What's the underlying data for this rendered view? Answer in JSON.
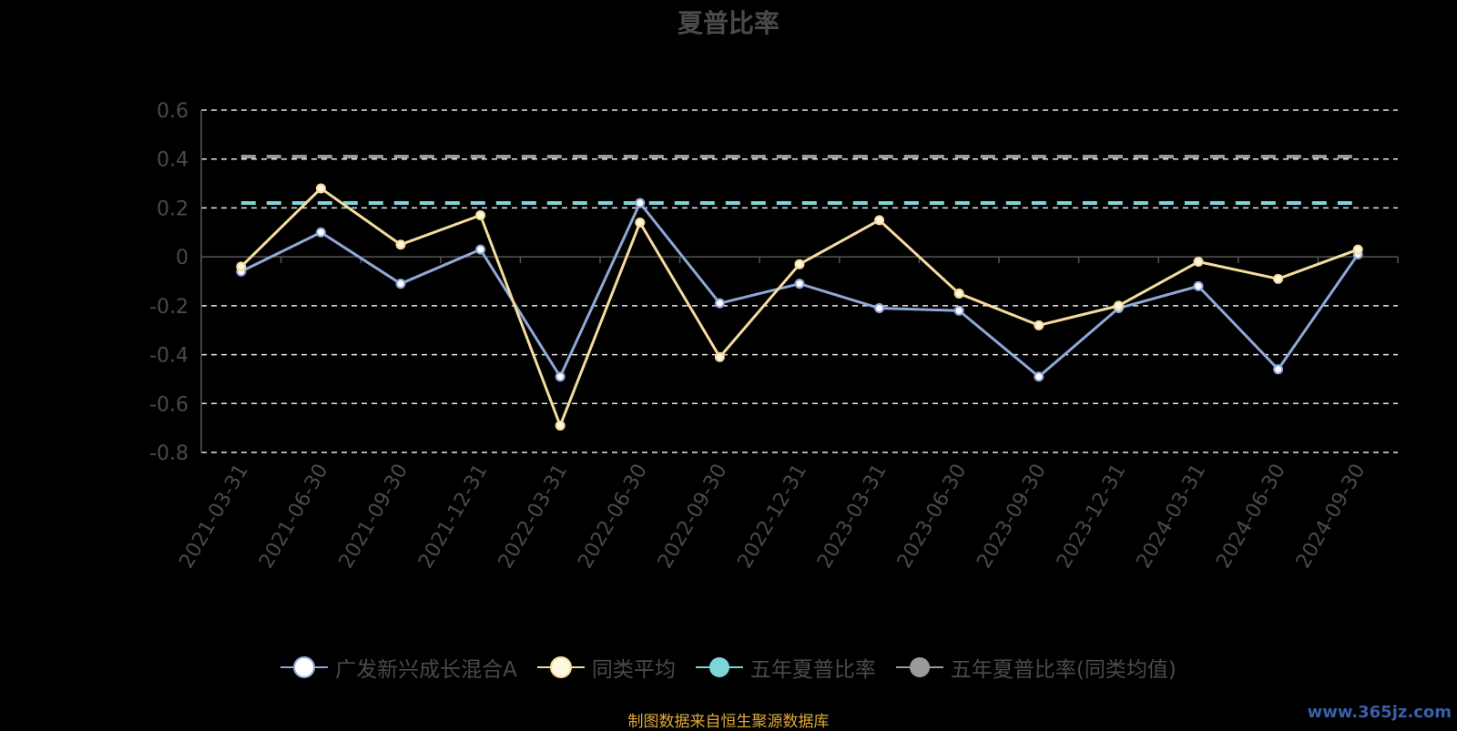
{
  "chart_data": {
    "type": "line",
    "title": "夏普比率",
    "categories": [
      "2021-03-31",
      "2021-06-30",
      "2021-09-30",
      "2021-12-31",
      "2022-03-31",
      "2022-06-30",
      "2022-09-30",
      "2022-12-31",
      "2023-03-31",
      "2023-06-30",
      "2023-09-30",
      "2023-12-31",
      "2024-03-31",
      "2024-06-30",
      "2024-09-30"
    ],
    "ylim": [
      -0.8,
      0.6
    ],
    "yticks": [
      "0.6",
      "0.4",
      "0.2",
      "0",
      "-0.2",
      "-0.4",
      "-0.6",
      "-0.8"
    ],
    "grid": true,
    "legend_position": "bottom",
    "series": [
      {
        "name": "广发新兴成长混合A",
        "color": "#8fa8d8",
        "marker_fill": "#ffffff",
        "style": "solid",
        "values": [
          -0.06,
          0.1,
          -0.11,
          0.03,
          -0.49,
          0.22,
          -0.19,
          -0.11,
          -0.21,
          -0.22,
          -0.49,
          -0.21,
          -0.12,
          -0.46,
          0.01
        ]
      },
      {
        "name": "同类平均",
        "color": "#f5dc9e",
        "marker_fill": "#fff8e0",
        "style": "solid",
        "values": [
          -0.04,
          0.28,
          0.05,
          0.17,
          -0.69,
          0.14,
          -0.41,
          -0.03,
          0.15,
          -0.15,
          -0.28,
          -0.2,
          -0.02,
          -0.09,
          0.03
        ]
      },
      {
        "name": "五年夏普比率",
        "color": "#7fd4d8",
        "marker_fill": "#7fd4d8",
        "style": "dashed",
        "values": [
          0.22,
          0.22,
          0.22,
          0.22,
          0.22,
          0.22,
          0.22,
          0.22,
          0.22,
          0.22,
          0.22,
          0.22,
          0.22,
          0.22,
          0.22
        ]
      },
      {
        "name": "五年夏普比率(同类均值)",
        "color": "#9a9a9a",
        "marker_fill": "#9a9a9a",
        "style": "dashed",
        "values": [
          0.41,
          0.41,
          0.41,
          0.41,
          0.41,
          0.41,
          0.41,
          0.41,
          0.41,
          0.41,
          0.41,
          0.41,
          0.41,
          0.41,
          0.41
        ]
      }
    ]
  },
  "footer": {
    "source": "制图数据来自恒生聚源数据库",
    "watermark": "www.365jz.com"
  }
}
